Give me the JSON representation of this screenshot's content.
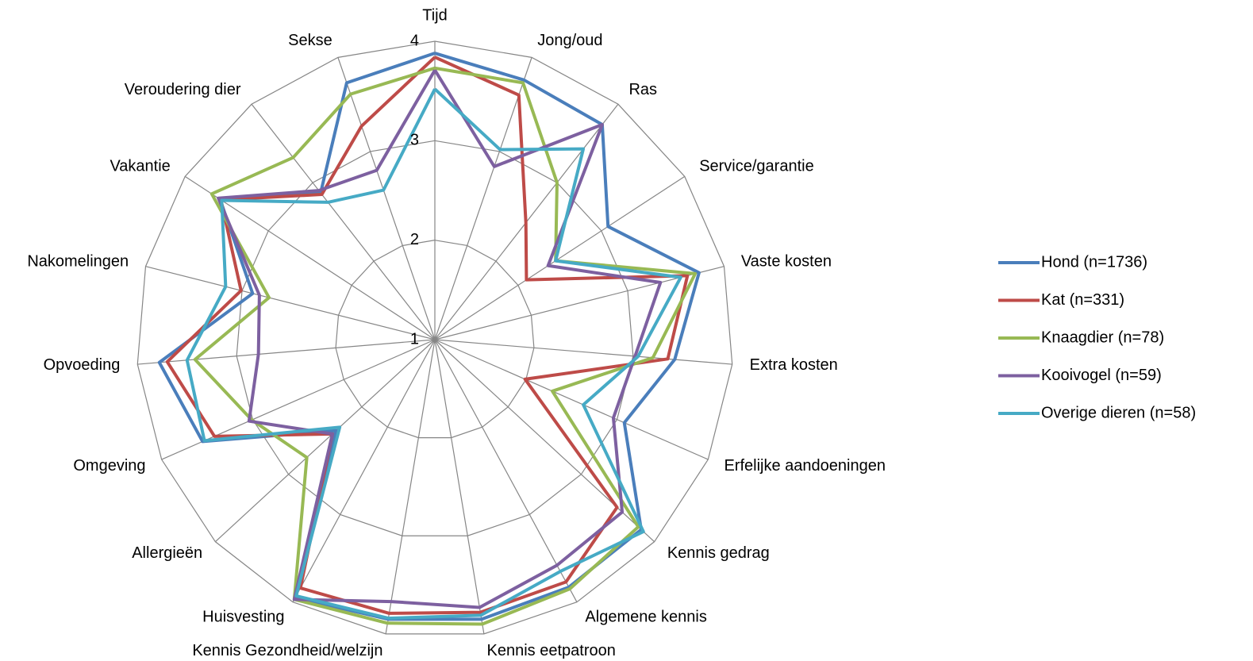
{
  "chart_data": {
    "type": "radar",
    "categories": [
      "Tijd",
      "Jong/oud",
      "Ras",
      "Service/garantie",
      "Vaste kosten",
      "Extra kosten",
      "Erfelijke aandoeningen",
      "Kennis gedrag",
      "Algemene kennis",
      "Kennis eetpatroon",
      "Kennis Gezondheid/welzijn",
      "Huisvesting",
      "Allergieën",
      "Omgeving",
      "Opvoeding",
      "Nakomelingen",
      "Vakantie",
      "Veroudering dier",
      "Sekse"
    ],
    "ylim": [
      1,
      4
    ],
    "yticks": [
      1,
      2,
      3,
      4
    ],
    "grid": true,
    "legend": "right",
    "series": [
      {
        "name": "Hond (n=1736)",
        "color": "#4a7ebb",
        "values": [
          3.88,
          3.76,
          3.74,
          3.08,
          3.74,
          3.42,
          3.08,
          3.82,
          3.83,
          3.85,
          3.85,
          3.95,
          2.35,
          3.55,
          3.78,
          2.89,
          3.58,
          2.87,
          3.73
        ]
      },
      {
        "name": "Kat (n=331)",
        "color": "#be4b48",
        "values": [
          3.84,
          3.6,
          2.49,
          2.1,
          3.62,
          3.35,
          1.99,
          3.49,
          3.77,
          3.78,
          3.79,
          3.84,
          2.4,
          3.42,
          3.7,
          3.01,
          3.57,
          2.85,
          3.27
        ]
      },
      {
        "name": "Knaagdier (n=78)",
        "color": "#98b954",
        "values": [
          3.73,
          3.73,
          3.0,
          2.45,
          3.7,
          3.2,
          2.29,
          3.78,
          3.85,
          3.9,
          3.89,
          3.97,
          2.75,
          3.01,
          3.42,
          2.72,
          3.68,
          3.32,
          3.61
        ]
      },
      {
        "name": "Kooivogel (n=59)",
        "color": "#7d60a0",
        "values": [
          3.71,
          2.84,
          3.74,
          2.36,
          3.34,
          3.02,
          2.96,
          3.56,
          3.58,
          3.73,
          3.67,
          3.97,
          2.4,
          3.04,
          2.78,
          2.82,
          3.6,
          2.9,
          2.8
        ]
      },
      {
        "name": "Overige dieren (n=58)",
        "color": "#46aac5",
        "values": [
          3.52,
          3.02,
          3.43,
          2.45,
          3.55,
          3.05,
          2.63,
          3.85,
          3.65,
          3.81,
          3.84,
          3.93,
          2.3,
          3.53,
          3.5,
          3.17,
          3.56,
          2.75,
          2.59
        ]
      }
    ]
  }
}
